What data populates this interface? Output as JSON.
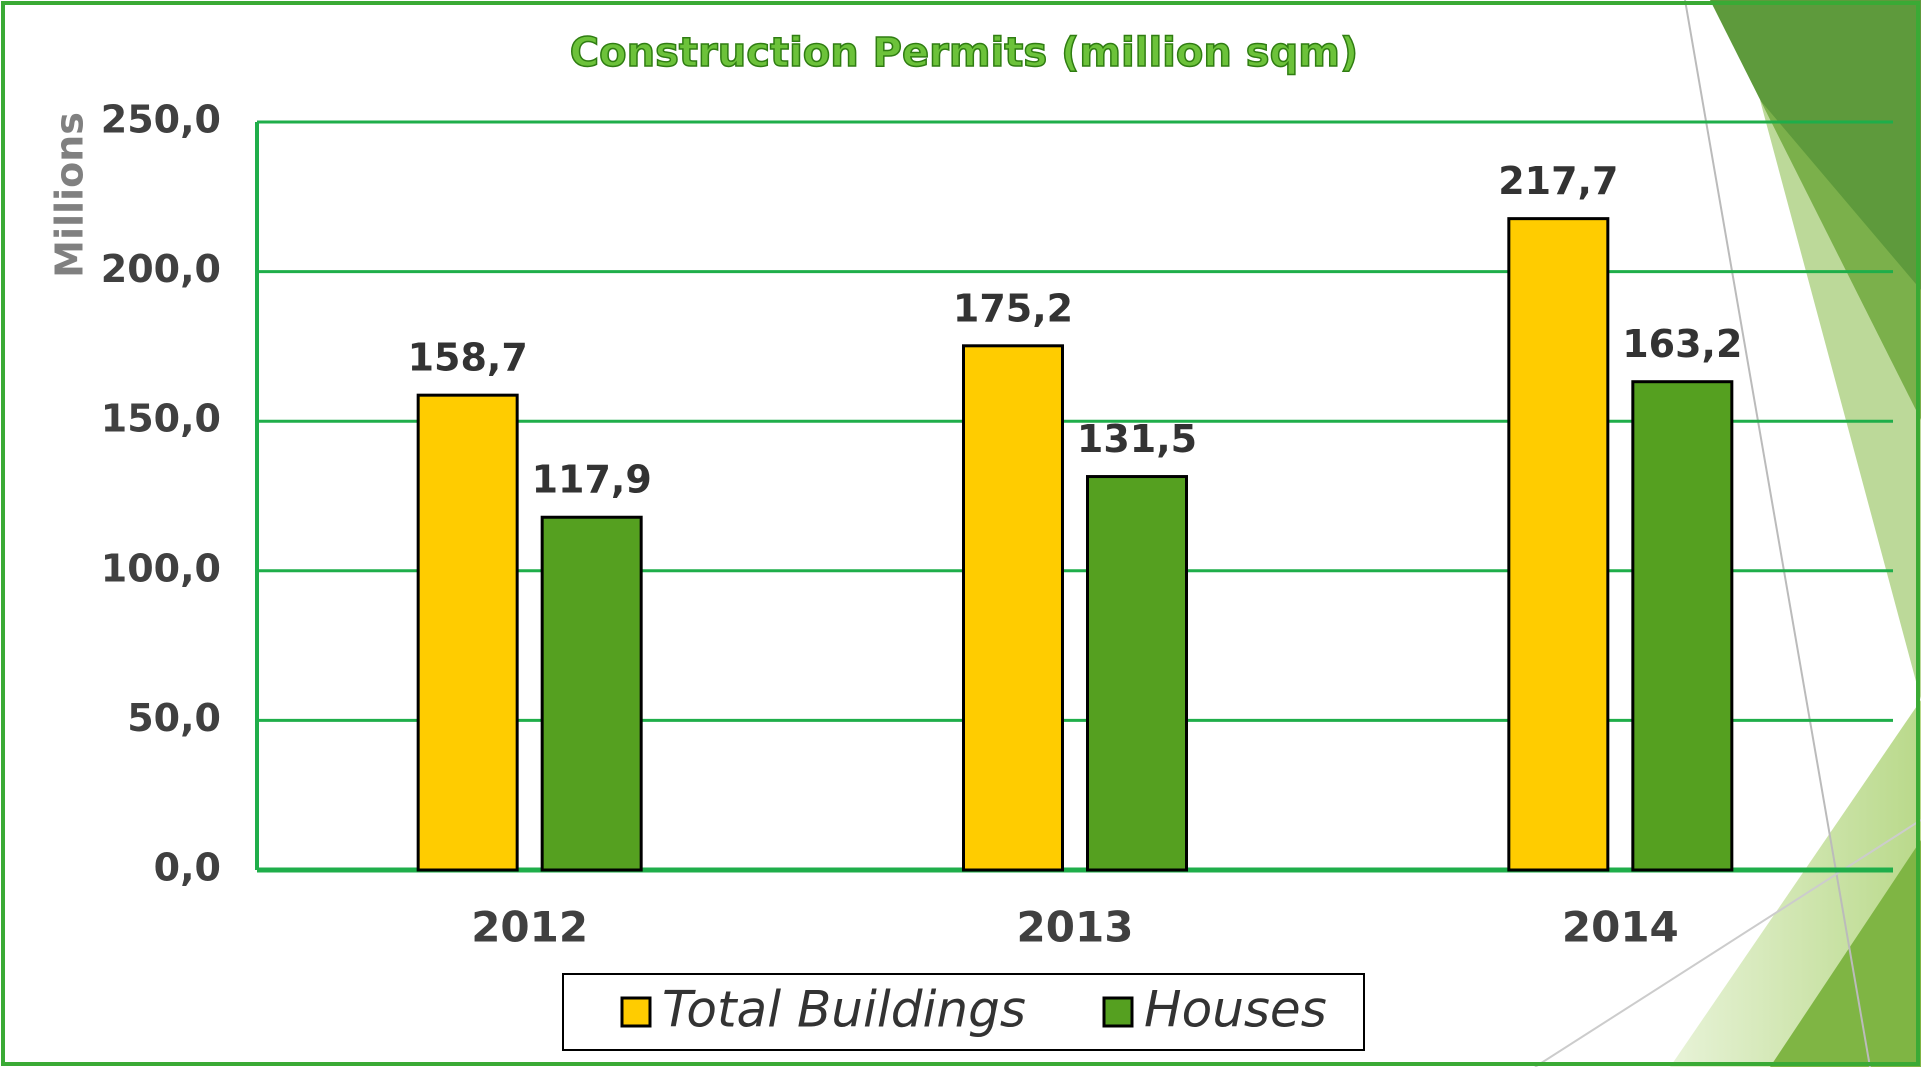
{
  "chart_data": {
    "type": "bar",
    "title": "Construction Permits (million sqm)",
    "y_label": "Millions",
    "categories": [
      "2012",
      "2013",
      "2014"
    ],
    "series": [
      {
        "name": "Total Buildings",
        "color": "#ffcc00",
        "values": [
          158.7,
          175.2,
          217.7
        ],
        "value_labels": [
          "158,7",
          "175,2",
          "217,7"
        ]
      },
      {
        "name": "Houses",
        "color": "#55a020",
        "values": [
          117.9,
          131.5,
          163.2
        ],
        "value_labels": [
          "117,9",
          "131,5",
          "163,2"
        ]
      }
    ],
    "ylim": [
      0,
      250
    ],
    "yticks": [
      {
        "value": 0,
        "label": "0,0"
      },
      {
        "value": 50,
        "label": "50,0"
      },
      {
        "value": 100,
        "label": "100,0"
      },
      {
        "value": 150,
        "label": "150,0"
      },
      {
        "value": 200,
        "label": "200,0"
      },
      {
        "value": 250,
        "label": "250,0"
      }
    ],
    "grid": true,
    "legend": "bottom"
  }
}
